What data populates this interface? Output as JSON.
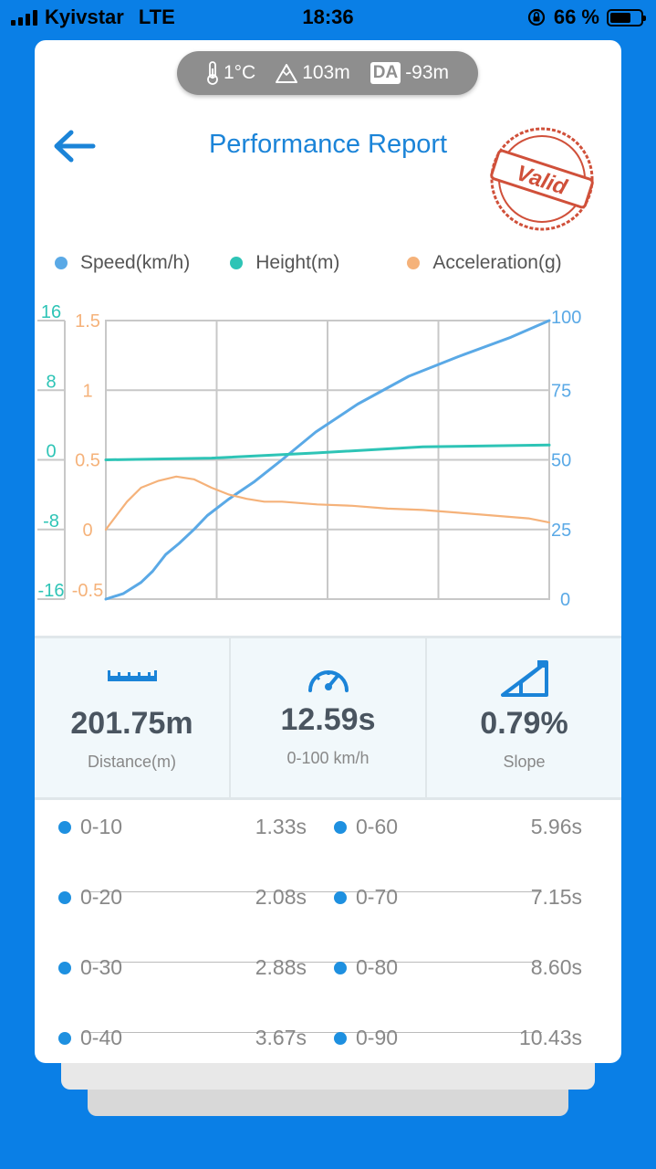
{
  "status": {
    "carrier": "Kyivstar",
    "network": "LTE",
    "time": "18:36",
    "battery": "66 %"
  },
  "conditions": {
    "temperature": "1°C",
    "altitude": "103m",
    "da_label": "DA",
    "density_altitude": "-93m"
  },
  "header": {
    "title": "Performance Report",
    "stamp": "Valid"
  },
  "legend": [
    {
      "label": "Speed(km/h)",
      "color": "#5aa9e6"
    },
    {
      "label": "Height(m)",
      "color": "#2ec4b6"
    },
    {
      "label": "Acceleration(g)",
      "color": "#f5b27a"
    }
  ],
  "chart_data": {
    "type": "line",
    "x_range": [
      0,
      12.59
    ],
    "axes": {
      "height_left": {
        "ticks": [
          "16",
          "8",
          "0",
          "-8",
          "-16"
        ],
        "range": [
          -16,
          16
        ],
        "color": "#2ec4b6"
      },
      "accel_left": {
        "ticks": [
          "1.5",
          "1",
          "0.5",
          "0",
          "-0.5"
        ],
        "range": [
          -0.5,
          1.5
        ],
        "color": "#f5b27a"
      },
      "speed_right": {
        "ticks": [
          "100",
          "75",
          "50",
          "25",
          "0"
        ],
        "range": [
          0,
          100
        ],
        "color": "#5aa9e6"
      }
    },
    "grid": true,
    "series": [
      {
        "name": "Speed(km/h)",
        "axis": "speed_right",
        "color": "#5aa9e6",
        "x": [
          0,
          0.5,
          1.0,
          1.33,
          1.7,
          2.08,
          2.5,
          2.88,
          3.5,
          4.2,
          5.0,
          5.96,
          7.15,
          8.6,
          10.0,
          11.5,
          12.59
        ],
        "values": [
          0,
          2,
          6,
          10,
          16,
          20,
          25,
          30,
          36,
          42,
          50,
          60,
          70,
          80,
          87,
          94,
          100
        ]
      },
      {
        "name": "Height(m)",
        "axis": "height_left",
        "color": "#2ec4b6",
        "x": [
          0,
          3,
          6,
          9,
          12.59
        ],
        "values": [
          0,
          0.2,
          0.8,
          1.5,
          1.7
        ]
      },
      {
        "name": "Acceleration(g)",
        "axis": "accel_left",
        "color": "#f5b27a",
        "x": [
          0,
          0.3,
          0.6,
          1.0,
          1.5,
          2.0,
          2.5,
          3.0,
          3.5,
          4.0,
          4.5,
          5.0,
          6.0,
          7.0,
          8.0,
          9.0,
          10.0,
          11.0,
          12.0,
          12.59
        ],
        "values": [
          0,
          0.1,
          0.2,
          0.3,
          0.35,
          0.38,
          0.36,
          0.3,
          0.25,
          0.22,
          0.2,
          0.2,
          0.18,
          0.17,
          0.15,
          0.14,
          0.12,
          0.1,
          0.08,
          0.05
        ]
      }
    ]
  },
  "stats": [
    {
      "value": "201.75m",
      "label": "Distance(m)",
      "icon": "ruler-icon"
    },
    {
      "value": "12.59s",
      "label": "0-100 km/h",
      "icon": "speedometer-icon"
    },
    {
      "value": "0.79%",
      "label": "Slope",
      "icon": "slope-icon"
    }
  ],
  "splits": [
    {
      "range": "0-10",
      "time": "1.33s"
    },
    {
      "range": "0-20",
      "time": "2.08s"
    },
    {
      "range": "0-30",
      "time": "2.88s"
    },
    {
      "range": "0-40",
      "time": "3.67s"
    },
    {
      "range": "0-60",
      "time": "5.96s"
    },
    {
      "range": "0-70",
      "time": "7.15s"
    },
    {
      "range": "0-80",
      "time": "8.60s"
    },
    {
      "range": "0-90",
      "time": "10.43s"
    }
  ]
}
